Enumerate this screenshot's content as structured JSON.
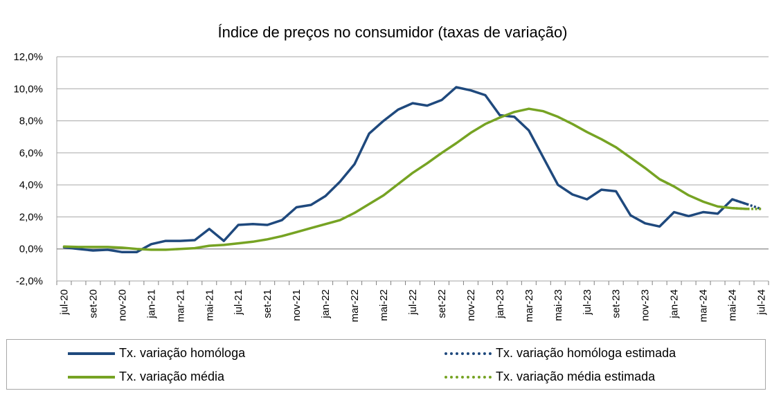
{
  "chart_data": {
    "type": "line",
    "title": "Índice de preços no consumidor  (taxas  de variação)",
    "ylim": [
      -2,
      12
    ],
    "yticks": [
      -2,
      0,
      2,
      4,
      6,
      8,
      10,
      12
    ],
    "ytick_labels": [
      "-2,0%",
      "0,0%",
      "2,0%",
      "4,0%",
      "6,0%",
      "8,0%",
      "10,0%",
      "12,0%"
    ],
    "grid": true,
    "x_tick_labels": [
      "jul-20",
      "set-20",
      "nov-20",
      "jan-21",
      "mar-21",
      "mai-21",
      "jul-21",
      "set-21",
      "nov-21",
      "jan-22",
      "mar-22",
      "mai-22",
      "jul-22",
      "set-22",
      "nov-22",
      "jan-23",
      "mar-23",
      "mai-23",
      "jul-23",
      "set-23",
      "nov-23",
      "jan-24",
      "mar-24",
      "mai-24",
      "jul-24"
    ],
    "months": [
      "jul-20",
      "ago-20",
      "set-20",
      "out-20",
      "nov-20",
      "dez-20",
      "jan-21",
      "fev-21",
      "mar-21",
      "abr-21",
      "mai-21",
      "jun-21",
      "jul-21",
      "ago-21",
      "set-21",
      "out-21",
      "nov-21",
      "dez-21",
      "jan-22",
      "fev-22",
      "mar-22",
      "abr-22",
      "mai-22",
      "jun-22",
      "jul-22",
      "ago-22",
      "set-22",
      "out-22",
      "nov-22",
      "dez-22",
      "jan-23",
      "fev-23",
      "mar-23",
      "abr-23",
      "mai-23",
      "jun-23",
      "jul-23",
      "ago-23",
      "set-23",
      "out-23",
      "nov-23",
      "dez-23",
      "jan-24",
      "fev-24",
      "mar-24",
      "abr-24",
      "mai-24",
      "jun-24",
      "jul-24"
    ],
    "series": [
      {
        "name": "Tx. variação homóloga",
        "color": "#1f497d",
        "style": "solid",
        "values": [
          0.1,
          0.0,
          -0.1,
          -0.05,
          -0.2,
          -0.2,
          0.3,
          0.5,
          0.5,
          0.55,
          1.25,
          0.5,
          1.5,
          1.55,
          1.5,
          1.8,
          2.6,
          2.75,
          3.3,
          4.2,
          5.3,
          7.2,
          8.0,
          8.7,
          9.1,
          8.95,
          9.3,
          10.1,
          9.9,
          9.6,
          8.35,
          8.25,
          7.4,
          5.7,
          4.0,
          3.4,
          3.1,
          3.7,
          3.6,
          2.1,
          1.6,
          1.4,
          2.3,
          2.05,
          2.3,
          2.2,
          3.1,
          2.8,
          null
        ]
      },
      {
        "name": "Tx. variação homóloga estimada",
        "color": "#1f497d",
        "style": "dotted",
        "values": [
          null,
          null,
          null,
          null,
          null,
          null,
          null,
          null,
          null,
          null,
          null,
          null,
          null,
          null,
          null,
          null,
          null,
          null,
          null,
          null,
          null,
          null,
          null,
          null,
          null,
          null,
          null,
          null,
          null,
          null,
          null,
          null,
          null,
          null,
          null,
          null,
          null,
          null,
          null,
          null,
          null,
          null,
          null,
          null,
          null,
          null,
          3.1,
          2.8,
          2.5
        ]
      },
      {
        "name": "Tx. variação média",
        "color": "#76a323",
        "style": "solid",
        "values": [
          0.15,
          0.12,
          0.12,
          0.12,
          0.08,
          0.0,
          -0.05,
          -0.05,
          0.0,
          0.05,
          0.2,
          0.25,
          0.35,
          0.45,
          0.6,
          0.8,
          1.05,
          1.3,
          1.55,
          1.8,
          2.25,
          2.8,
          3.35,
          4.05,
          4.75,
          5.35,
          6.0,
          6.6,
          7.25,
          7.8,
          8.2,
          8.55,
          8.75,
          8.6,
          8.25,
          7.8,
          7.3,
          6.85,
          6.35,
          5.7,
          5.05,
          4.35,
          3.9,
          3.35,
          2.95,
          2.65,
          2.55,
          2.5,
          null
        ]
      },
      {
        "name": "Tx. variação média  estimada",
        "color": "#76a323",
        "style": "dotted",
        "values": [
          null,
          null,
          null,
          null,
          null,
          null,
          null,
          null,
          null,
          null,
          null,
          null,
          null,
          null,
          null,
          null,
          null,
          null,
          null,
          null,
          null,
          null,
          null,
          null,
          null,
          null,
          null,
          null,
          null,
          null,
          null,
          null,
          null,
          null,
          null,
          null,
          null,
          null,
          null,
          null,
          null,
          null,
          null,
          null,
          null,
          null,
          2.55,
          2.5,
          2.5
        ]
      }
    ],
    "legend": {
      "position": "bottom",
      "items": [
        {
          "label": "Tx. variação homóloga",
          "color": "#1f497d",
          "style": "solid"
        },
        {
          "label": "Tx. variação homóloga estimada",
          "color": "#1f497d",
          "style": "dotted"
        },
        {
          "label": "Tx. variação média",
          "color": "#76a323",
          "style": "solid"
        },
        {
          "label": "Tx. variação média  estimada",
          "color": "#76a323",
          "style": "dotted"
        }
      ]
    }
  }
}
